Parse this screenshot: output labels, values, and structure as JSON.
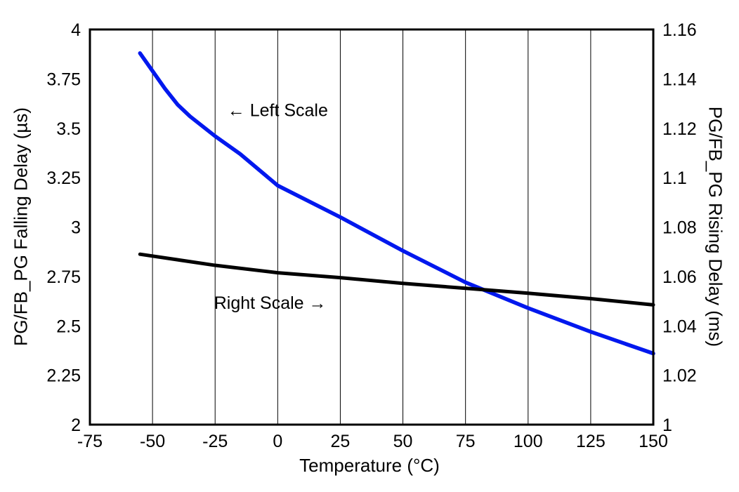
{
  "chart_data": {
    "type": "line",
    "title": "",
    "xlabel": "Temperature (°C)",
    "ylabel_left": "PG/FB_PG Falling Delay (µs)",
    "ylabel_right": "PG/FB_PG Rising Delay (ms)",
    "xlim": [
      -75,
      150
    ],
    "ylim_left": [
      2,
      4
    ],
    "ylim_right": [
      1,
      1.16
    ],
    "x_ticks": [
      "-75",
      "-50",
      "-25",
      "0",
      "25",
      "50",
      "75",
      "100",
      "125",
      "150"
    ],
    "y_ticks_left": [
      "2",
      "2.25",
      "2.5",
      "2.75",
      "3",
      "3.25",
      "3.5",
      "3.75",
      "4"
    ],
    "y_ticks_right": [
      "1",
      "1.02",
      "1.04",
      "1.06",
      "1.08",
      "1.1",
      "1.12",
      "1.14",
      "1.16"
    ],
    "grid": "vertical-only",
    "legend": "none",
    "colors": {
      "falling_delay_line": "#0018EE",
      "rising_delay_line": "#000000",
      "frame": "#000000",
      "grid": "#000000"
    },
    "series": [
      {
        "name": "PG/FB_PG Falling Delay (Left Scale)",
        "axis": "left",
        "color_key": "falling_delay_line",
        "x": [
          -55,
          -50,
          -45,
          -40,
          -35,
          -25,
          -15,
          0,
          25,
          50,
          75,
          100,
          125,
          150
        ],
        "y": [
          3.88,
          3.79,
          3.7,
          3.62,
          3.56,
          3.46,
          3.37,
          3.21,
          3.05,
          2.88,
          2.72,
          2.59,
          2.47,
          2.36
        ]
      },
      {
        "name": "PG/FB_PG Rising Delay (Right Scale)",
        "axis": "right",
        "color_key": "rising_delay_line",
        "x": [
          -55,
          -25,
          0,
          25,
          50,
          75,
          100,
          125,
          150
        ],
        "y": [
          1.069,
          1.0645,
          1.0615,
          1.0595,
          1.0572,
          1.0552,
          1.0532,
          1.051,
          1.0485
        ]
      }
    ],
    "annotations": [
      {
        "text": "← Left Scale",
        "x": 0,
        "y": 3.59,
        "axis": "left"
      },
      {
        "text": "Right Scale →",
        "x": -3,
        "y": 2.615,
        "axis": "left"
      }
    ]
  }
}
